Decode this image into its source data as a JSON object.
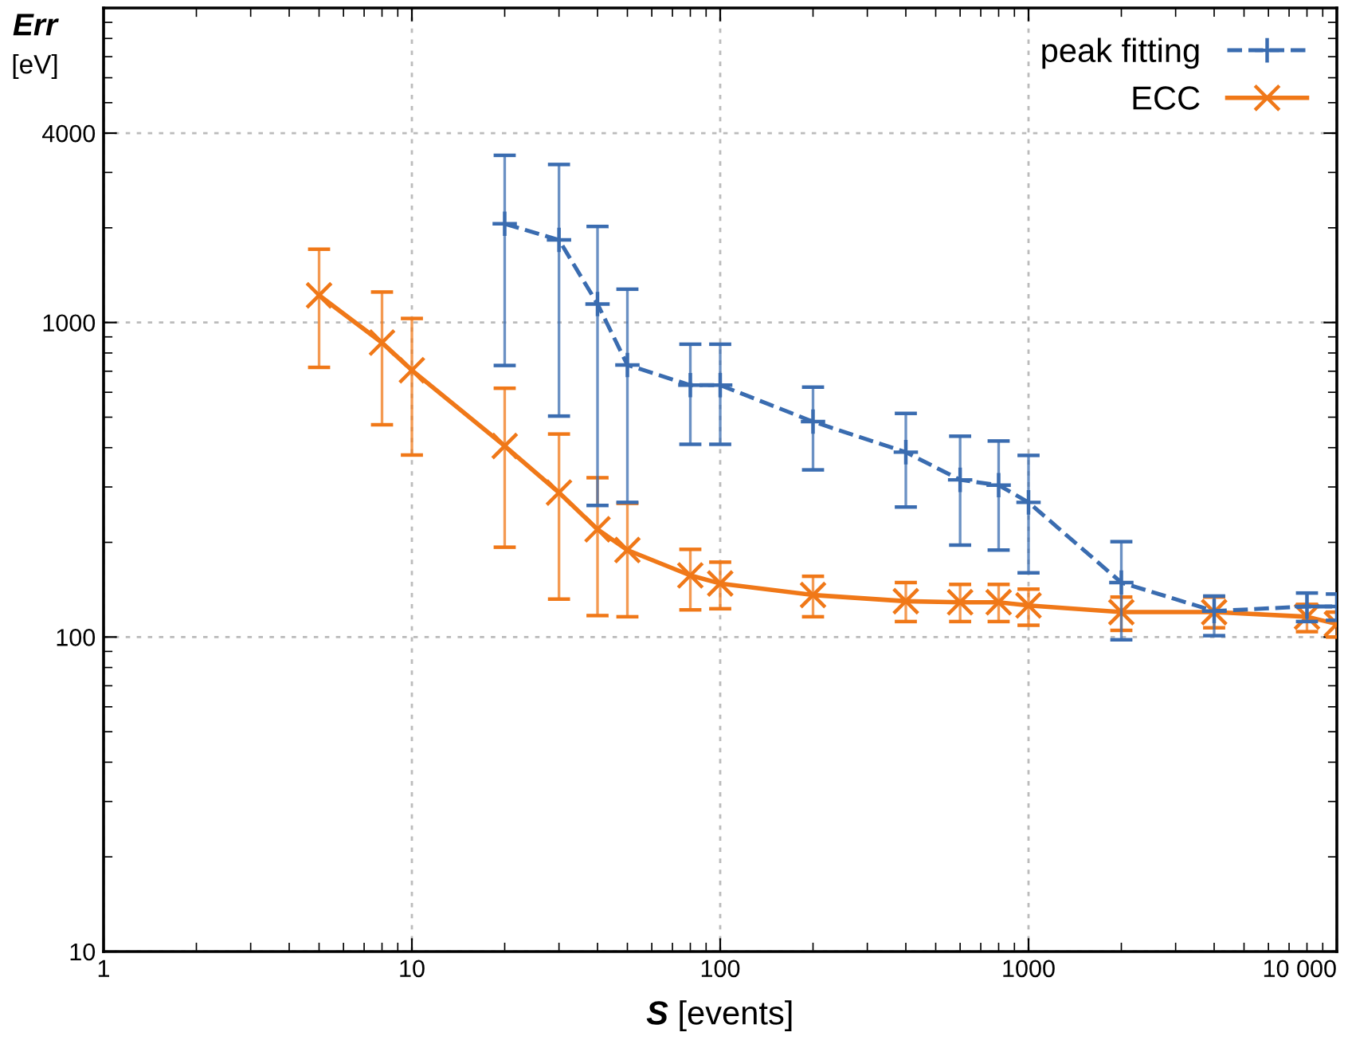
{
  "chart_data": {
    "type": "line",
    "xlabel": "S [events]",
    "ylabel": "Err [eV]",
    "log": "xy",
    "grid": true,
    "legend": "top right",
    "xlim": [
      1,
      10000
    ],
    "xticks": [
      1,
      10,
      100,
      1000,
      {
        "value": 10000,
        "label": "10 000"
      }
    ],
    "ylim": [
      10,
      10000
    ],
    "yticks": [
      10,
      100,
      1000,
      4000
    ],
    "series": [
      {
        "name": "peak fitting",
        "color": "#3a6cb0",
        "marker": "cross",
        "line_style": "dashed",
        "x": [
          20,
          30,
          40,
          50,
          80,
          100,
          200,
          400,
          600,
          800,
          1000,
          2000,
          4000,
          8000,
          10000
        ],
        "values": [
          2060,
          1830,
          1145,
          733,
          632,
          632,
          484,
          387,
          316,
          304,
          268,
          149,
          121,
          125,
          125
        ],
        "errors": [
          [
            730,
            3400
          ],
          [
            504,
            3180
          ],
          [
            262,
            2020
          ],
          [
            268,
            1276
          ],
          [
            410,
            853
          ],
          [
            410,
            853
          ],
          [
            340,
            623
          ],
          [
            259,
            514
          ],
          [
            196,
            435
          ],
          [
            189,
            420
          ],
          [
            160,
            378
          ],
          [
            98,
            201
          ],
          [
            101,
            135
          ],
          [
            112,
            138
          ],
          [
            113,
            137
          ]
        ]
      },
      {
        "name": "ECC",
        "color": "#f07818",
        "marker": "x",
        "line_style": "solid",
        "x": [
          5,
          8,
          10,
          20,
          30,
          40,
          50,
          80,
          100,
          200,
          400,
          600,
          800,
          1000,
          2000,
          4000,
          8000,
          10000
        ],
        "values": [
          1220,
          863,
          705,
          405,
          288,
          220,
          189,
          157,
          148,
          136,
          130,
          129,
          129,
          126,
          120,
          120,
          116,
          110
        ],
        "errors": [
          [
            720,
            1710
          ],
          [
            473,
            1250
          ],
          [
            379,
            1030
          ],
          [
            193,
            618
          ],
          [
            132,
            442
          ],
          [
            117,
            321
          ],
          [
            116,
            266
          ],
          [
            122,
            190
          ],
          [
            123,
            173
          ],
          [
            116,
            156
          ],
          [
            112,
            149
          ],
          [
            112,
            147
          ],
          [
            112,
            147
          ],
          [
            109,
            142
          ],
          [
            105,
            134
          ],
          [
            107,
            134
          ],
          [
            104,
            127
          ],
          [
            100,
            120
          ]
        ]
      }
    ]
  }
}
